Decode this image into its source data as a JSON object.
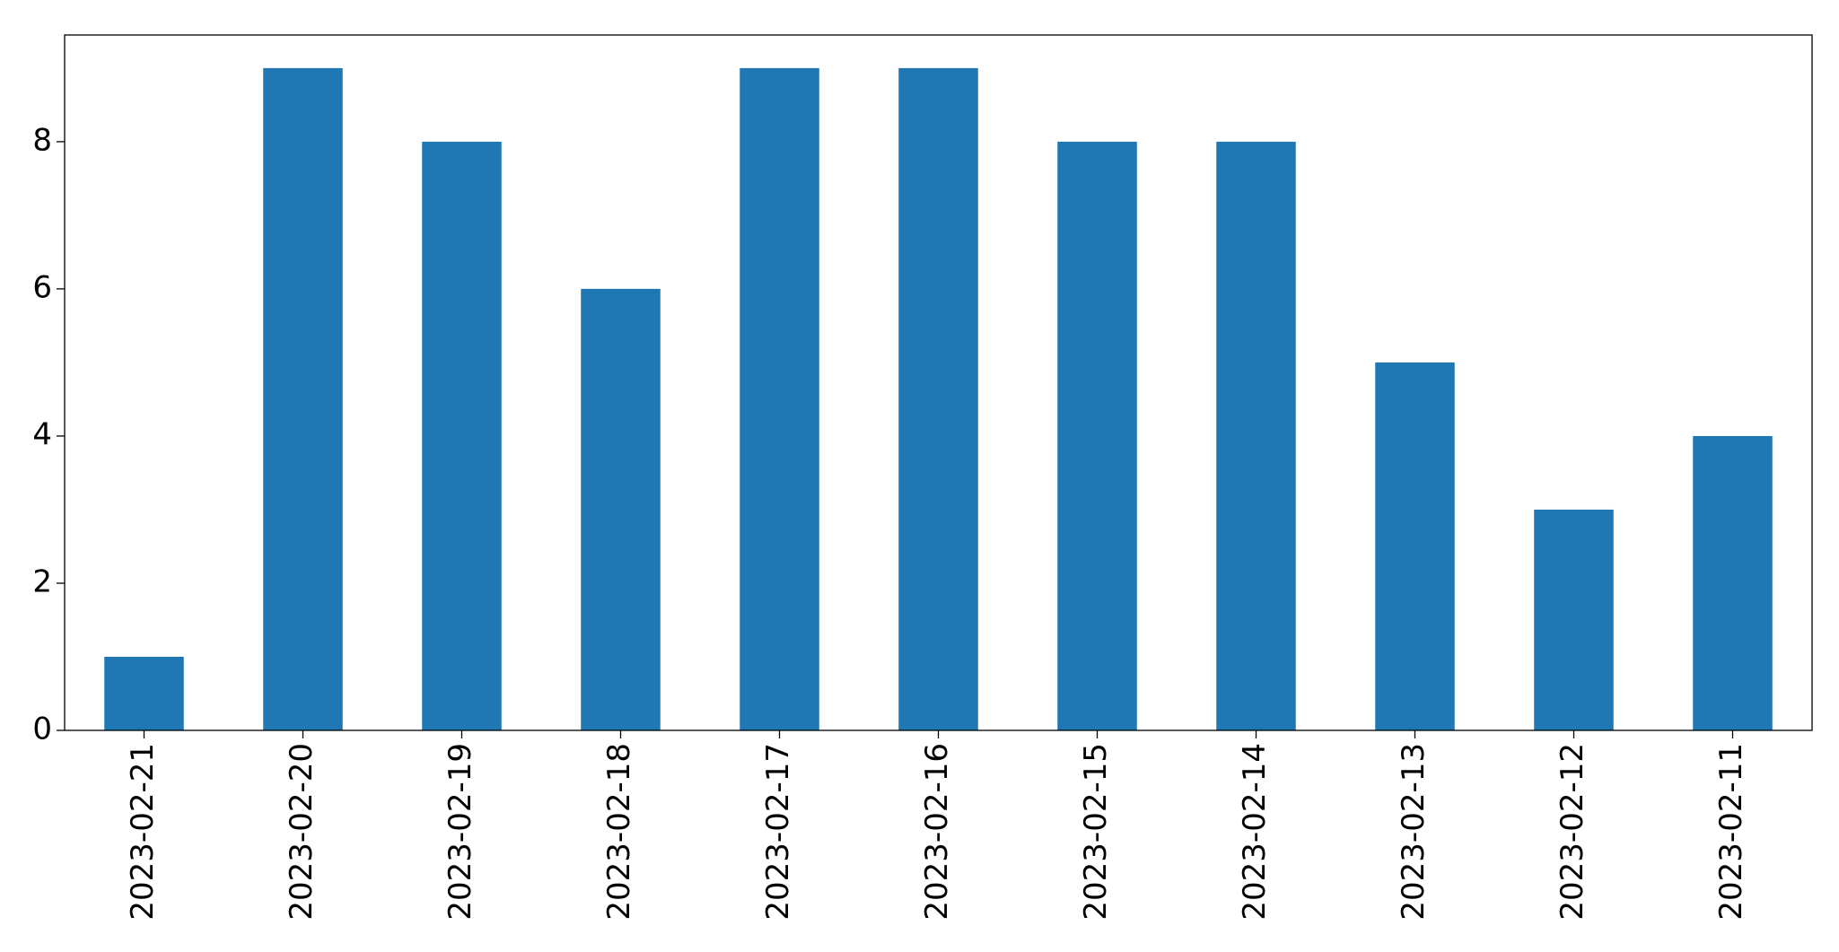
{
  "chart_data": {
    "type": "bar",
    "categories": [
      "2023-02-21",
      "2023-02-20",
      "2023-02-19",
      "2023-02-18",
      "2023-02-17",
      "2023-02-16",
      "2023-02-15",
      "2023-02-14",
      "2023-02-13",
      "2023-02-12",
      "2023-02-11"
    ],
    "values": [
      1,
      9,
      8,
      6,
      9,
      9,
      8,
      8,
      5,
      3,
      4
    ],
    "color": "#1f77b4",
    "ylim": [
      0,
      9.45
    ],
    "yticks": [
      0,
      2,
      4,
      6,
      8
    ],
    "grid": false
  }
}
